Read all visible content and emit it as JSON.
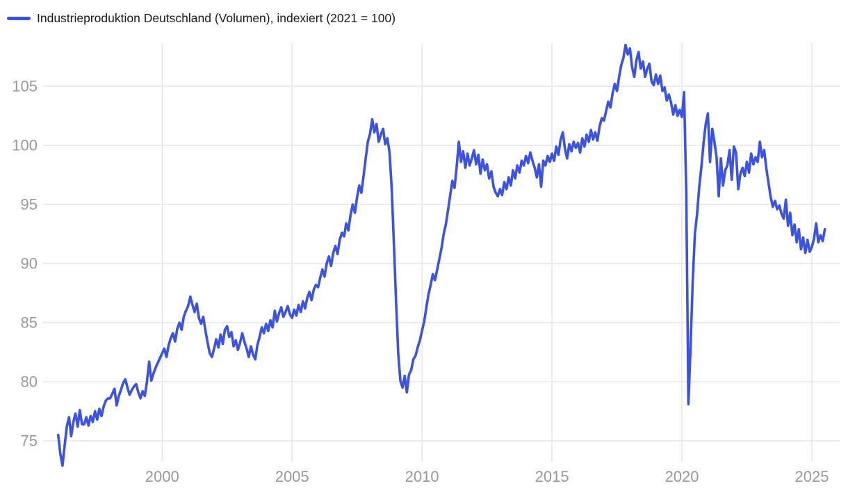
{
  "legend": {
    "label": "Industrieproduktion Deutschland (Volumen), indexiert (2021 = 100)",
    "swatch_color": "#3b53e0"
  },
  "chart_data": {
    "type": "line",
    "title": "Industrieproduktion Deutschland (Volumen), indexiert (2021 = 100)",
    "frequency": "monthly",
    "x_start_year": 1996,
    "x_end_approx": 2025.5,
    "xticks": [
      2000,
      2005,
      2010,
      2015,
      2020,
      2025
    ],
    "yticks": [
      75,
      80,
      85,
      90,
      95,
      100,
      105
    ],
    "xlim": [
      1995.42,
      2026.07
    ],
    "ylim": [
      73.24,
      108.65
    ],
    "grid": true,
    "legend_position": "top-left",
    "line_color": "#3b53e0",
    "grid_color": "#e3e3e3",
    "axis_label_color": "#999999",
    "series": [
      {
        "name": "Industrieproduktion Deutschland (Volumen), indexiert (2021 = 100)",
        "values": [
          75.5,
          73.9,
          72.9,
          74.6,
          76.2,
          77.0,
          75.4,
          76.6,
          77.3,
          76.2,
          77.6,
          76.4,
          76.4,
          77.0,
          76.3,
          77.1,
          76.6,
          77.5,
          76.8,
          77.7,
          77.1,
          77.9,
          78.4,
          78.6,
          78.6,
          79.0,
          79.4,
          78.0,
          78.8,
          79.3,
          79.9,
          80.2,
          79.5,
          78.9,
          79.3,
          79.6,
          79.8,
          79.1,
          78.6,
          79.2,
          78.8,
          80.0,
          81.7,
          80.1,
          80.7,
          81.2,
          81.6,
          82.0,
          82.4,
          82.8,
          82.1,
          83.1,
          83.7,
          84.1,
          83.4,
          84.5,
          85.0,
          84.4,
          85.5,
          86.0,
          86.4,
          87.2,
          86.5,
          85.9,
          86.6,
          85.4,
          84.9,
          85.5,
          84.3,
          83.3,
          82.4,
          82.1,
          82.8,
          83.6,
          82.9,
          84.0,
          83.2,
          84.4,
          84.7,
          83.8,
          84.2,
          83.0,
          83.5,
          82.7,
          83.3,
          84.1,
          83.4,
          82.8,
          82.1,
          83.0,
          82.3,
          81.9,
          83.1,
          83.8,
          84.6,
          84.1,
          84.9,
          84.3,
          85.2,
          84.6,
          86.0,
          85.1,
          85.8,
          86.3,
          85.5,
          85.9,
          86.4,
          85.7,
          85.4,
          86.1,
          85.6,
          86.5,
          85.9,
          86.8,
          86.2,
          87.1,
          87.6,
          86.9,
          87.8,
          88.2,
          88.0,
          88.8,
          89.5,
          88.9,
          90.0,
          90.6,
          89.8,
          90.9,
          91.5,
          90.8,
          92.0,
          92.6,
          92.3,
          93.4,
          92.8,
          94.1,
          95.0,
          94.3,
          95.6,
          96.6,
          96.0,
          97.4,
          98.9,
          100.3,
          101.0,
          102.2,
          101.1,
          101.8,
          100.3,
          100.9,
          101.4,
          100.1,
          100.6,
          99.4,
          96.4,
          91.8,
          86.8,
          82.4,
          80.1,
          79.5,
          80.5,
          79.1,
          80.6,
          81.0,
          81.9,
          82.2,
          82.9,
          83.5,
          84.3,
          85.1,
          86.3,
          87.4,
          88.2,
          89.1,
          88.6,
          89.5,
          90.4,
          91.3,
          92.5,
          93.3,
          94.5,
          95.8,
          97.0,
          96.4,
          98.2,
          100.3,
          98.6,
          99.5,
          98.1,
          99.3,
          98.3,
          98.9,
          99.6,
          98.4,
          99.2,
          97.6,
          98.8,
          97.9,
          98.4,
          97.2,
          97.8,
          96.5,
          96.0,
          95.7,
          96.3,
          95.8,
          96.9,
          96.3,
          97.3,
          96.6,
          97.9,
          97.2,
          98.3,
          97.7,
          98.7,
          98.3,
          99.1,
          98.5,
          99.4,
          98.7,
          98.1,
          97.3,
          98.4,
          96.5,
          98.7,
          98.3,
          99.1,
          98.6,
          99.3,
          98.7,
          99.9,
          99.2,
          100.5,
          101.1,
          99.7,
          98.9,
          100.1,
          99.5,
          100.3,
          99.8,
          100.2,
          99.4,
          100.6,
          99.9,
          100.9,
          100.3,
          101.3,
          100.5,
          101.1,
          100.4,
          101.6,
          102.3,
          102.1,
          102.9,
          103.7,
          103.2,
          104.4,
          105.2,
          104.6,
          105.8,
          106.8,
          107.4,
          108.5,
          107.7,
          108.2,
          106.6,
          105.8,
          107.2,
          107.9,
          106.5,
          107.1,
          105.8,
          106.5,
          106.9,
          105.4,
          105.1,
          106.0,
          105.2,
          105.9,
          104.6,
          104.9,
          103.8,
          104.3,
          103.6,
          102.6,
          103.4,
          102.5,
          103.0,
          102.4,
          104.5,
          96.0,
          78.1,
          83.0,
          88.5,
          92.5,
          94.2,
          96.5,
          98.2,
          100.2,
          101.8,
          102.7,
          98.6,
          101.4,
          100.3,
          99.0,
          95.7,
          98.9,
          96.6,
          97.9,
          98.3,
          99.6,
          97.1,
          99.9,
          99.4,
          96.3,
          97.6,
          98.1,
          97.4,
          98.6,
          97.7,
          99.3,
          98.4,
          99.0,
          98.6,
          100.3,
          99.0,
          99.6,
          98.0,
          96.8,
          95.6,
          94.8,
          95.3,
          94.6,
          94.9,
          94.2,
          93.8,
          95.4,
          93.2,
          94.3,
          92.4,
          93.3,
          91.8,
          92.9,
          91.2,
          92.2,
          90.9,
          92.0,
          91.0,
          91.4,
          92.1,
          93.4,
          91.8,
          92.4,
          91.9,
          92.9
        ]
      }
    ]
  }
}
